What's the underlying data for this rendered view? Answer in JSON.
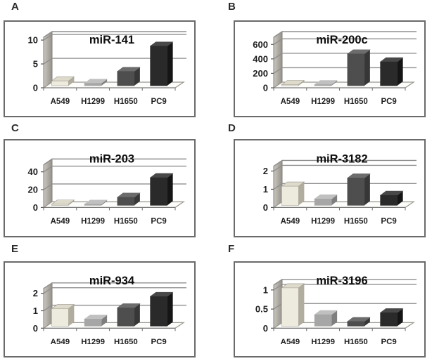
{
  "figure": {
    "panel_letters": [
      "A",
      "B",
      "C",
      "D",
      "E",
      "F"
    ]
  },
  "colors": {
    "background": "#ffffff",
    "panel_border": "#6a6a6a",
    "grid": "#8f8f8f",
    "axis_text": "#1f1f1f",
    "title_text": "#0d0d0d",
    "wall_light": "#cbc8c0",
    "wall_dark": "#94908a",
    "wall_stroke": "#85827a",
    "floor_fill": "#fcfcfa",
    "floor_stroke": "#98958d",
    "bar_front": {
      "A549": "#edeade",
      "H1299": "#a6a6a6",
      "H1650": "#4e4e4e",
      "PC9": "#2a2a2a"
    },
    "bar_top": {
      "A549": "#dedacc",
      "H1299": "#c0c0c0",
      "H1650": "#6c6c6c",
      "PC9": "#484848"
    },
    "bar_side": {
      "A549": "#b0ac9e",
      "H1299": "#7e7e7e",
      "H1650": "#373737",
      "PC9": "#151515"
    }
  },
  "chart_data": [
    {
      "type": "bar",
      "panel": "A",
      "title": "miR-141",
      "categories": [
        "A549",
        "H1299",
        "H1650",
        "PC9"
      ],
      "values": [
        1.0,
        0.5,
        3.0,
        8.3
      ],
      "yticks": [
        0,
        5,
        10
      ],
      "ylim": [
        0,
        10.6
      ],
      "xlabel": "",
      "ylabel": "",
      "grid": true,
      "legend": "none",
      "style": "3d-column"
    },
    {
      "type": "bar",
      "panel": "B",
      "title": "miR-200c",
      "categories": [
        "A549",
        "H1299",
        "H1650",
        "PC9"
      ],
      "values": [
        8,
        10,
        440,
        330
      ],
      "yticks": [
        0,
        200,
        400,
        600
      ],
      "ylim": [
        0,
        700
      ],
      "xlabel": "",
      "ylabel": "",
      "grid": true,
      "legend": "none",
      "style": "3d-column"
    },
    {
      "type": "bar",
      "panel": "C",
      "title": "miR-203",
      "categories": [
        "A549",
        "H1299",
        "H1650",
        "PC9"
      ],
      "values": [
        0.7,
        0.7,
        9,
        31
      ],
      "yticks": [
        0,
        20,
        40
      ],
      "ylim": [
        0,
        48
      ],
      "xlabel": "",
      "ylabel": "",
      "grid": true,
      "legend": "none",
      "style": "3d-column"
    },
    {
      "type": "bar",
      "panel": "D",
      "title": "miR-3182",
      "categories": [
        "A549",
        "H1299",
        "H1650",
        "PC9"
      ],
      "values": [
        1.05,
        0.35,
        1.5,
        0.55
      ],
      "yticks": [
        0,
        1,
        2
      ],
      "ylim": [
        0,
        2.27
      ],
      "xlabel": "",
      "ylabel": "",
      "grid": true,
      "legend": "none",
      "style": "3d-column"
    },
    {
      "type": "bar",
      "panel": "E",
      "title": "miR-934",
      "categories": [
        "A549",
        "H1299",
        "H1650",
        "PC9"
      ],
      "values": [
        1.0,
        0.4,
        1.05,
        1.7
      ],
      "yticks": [
        0,
        1,
        2
      ],
      "ylim": [
        0,
        2.28
      ],
      "xlabel": "",
      "ylabel": "",
      "grid": true,
      "legend": "none",
      "style": "3d-column"
    },
    {
      "type": "bar",
      "panel": "F",
      "title": "miR-3196",
      "categories": [
        "A549",
        "H1299",
        "H1650",
        "PC9"
      ],
      "values": [
        1.0,
        0.3,
        0.12,
        0.35
      ],
      "yticks": [
        0,
        0.5,
        1
      ],
      "ylim": [
        0,
        1.13
      ],
      "xlabel": "",
      "ylabel": "",
      "grid": true,
      "legend": "none",
      "style": "3d-column"
    }
  ]
}
